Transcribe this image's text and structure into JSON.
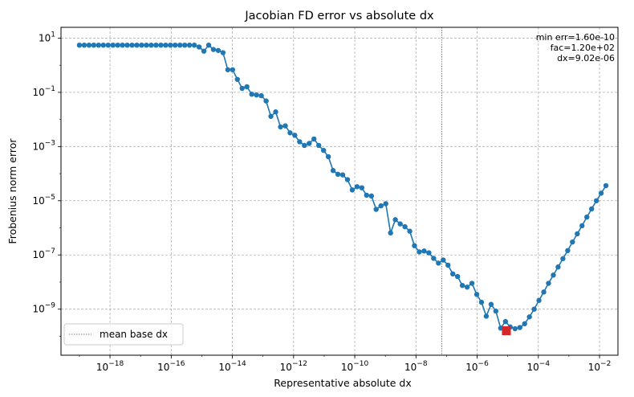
{
  "chart_data": {
    "type": "scatter",
    "title": "Jacobian FD error vs absolute dx",
    "xlabel": "Representative absolute dx",
    "ylabel": "Frobenius norm error",
    "xscale": "log",
    "yscale": "log",
    "xlim": [
      2.5e-20,
      0.04
    ],
    "ylim": [
      2e-11,
      25.0
    ],
    "grid": true,
    "x_ticks": [
      {
        "value": 1e-18,
        "base": "10",
        "exp": "−18"
      },
      {
        "value": 1e-16,
        "base": "10",
        "exp": "−16"
      },
      {
        "value": 1e-14,
        "base": "10",
        "exp": "−14"
      },
      {
        "value": 1e-12,
        "base": "10",
        "exp": "−12"
      },
      {
        "value": 1e-10,
        "base": "10",
        "exp": "−10"
      },
      {
        "value": 1e-08,
        "base": "10",
        "exp": "−8"
      },
      {
        "value": 1e-06,
        "base": "10",
        "exp": "−6"
      },
      {
        "value": 0.0001,
        "base": "10",
        "exp": "−4"
      },
      {
        "value": 0.01,
        "base": "10",
        "exp": "−2"
      }
    ],
    "y_ticks": [
      {
        "value": 10,
        "base": "10",
        "exp": "1"
      },
      {
        "value": 0.1,
        "base": "10",
        "exp": "−1"
      },
      {
        "value": 0.001,
        "base": "10",
        "exp": "−3"
      },
      {
        "value": 1e-05,
        "base": "10",
        "exp": "−5"
      },
      {
        "value": 1e-07,
        "base": "10",
        "exp": "−7"
      },
      {
        "value": 1e-09,
        "base": "10",
        "exp": "−9"
      }
    ],
    "series": [
      {
        "color": "#1f77b4",
        "marker": "circle",
        "points": [
          [
            1e-19,
            5.5
          ],
          [
            1.32e-19,
            5.5
          ],
          [
            1.74e-19,
            5.5
          ],
          [
            2.29e-19,
            5.5
          ],
          [
            3.02e-19,
            5.5
          ],
          [
            3.98e-19,
            5.5
          ],
          [
            5.25e-19,
            5.5
          ],
          [
            6.92e-19,
            5.5
          ],
          [
            9.12e-19,
            5.5
          ],
          [
            1.2e-18,
            5.5
          ],
          [
            1.58e-18,
            5.5
          ],
          [
            2.09e-18,
            5.5
          ],
          [
            2.75e-18,
            5.5
          ],
          [
            3.63e-18,
            5.5
          ],
          [
            4.79e-18,
            5.5
          ],
          [
            6.31e-18,
            5.5
          ],
          [
            8.32e-18,
            5.5
          ],
          [
            1.1e-17,
            5.5
          ],
          [
            1.45e-17,
            5.5
          ],
          [
            1.91e-17,
            5.5
          ],
          [
            2.51e-17,
            5.5
          ],
          [
            3.31e-17,
            5.5
          ],
          [
            4.37e-17,
            5.5
          ],
          [
            5.75e-17,
            5.5
          ],
          [
            7.59e-17,
            5.5
          ],
          [
            1e-16,
            4.7
          ],
          [
            1.32e-16,
            3.3
          ],
          [
            1.74e-16,
            5.5
          ],
          [
            2.29e-16,
            3.8
          ],
          [
            3.02e-16,
            3.5
          ],
          [
            3.98e-16,
            2.9
          ],
          [
            5.25e-16,
            0.68
          ],
          [
            6.92e-16,
            0.68
          ],
          [
            9.12e-16,
            0.3
          ],
          [
            1.2e-15,
            0.14
          ],
          [
            1.58e-15,
            0.16
          ],
          [
            2.09e-15,
            0.085
          ],
          [
            2.75e-15,
            0.08
          ],
          [
            3.63e-15,
            0.075
          ],
          [
            4.79e-15,
            0.048
          ],
          [
            6.31e-15,
            0.013
          ],
          [
            8.32e-15,
            0.019
          ],
          [
            1.1e-14,
            0.0053
          ],
          [
            1.45e-14,
            0.0058
          ],
          [
            1.91e-14,
            0.0032
          ],
          [
            2.51e-14,
            0.0026
          ],
          [
            3.31e-14,
            0.0015
          ],
          [
            4.37e-14,
            0.0011
          ],
          [
            5.75e-14,
            0.0013
          ],
          [
            7.59e-14,
            0.0019
          ],
          [
            1e-13,
            0.0011
          ],
          [
            1.32e-13,
            0.00072
          ],
          [
            1.74e-13,
            0.00042
          ],
          [
            2.29e-13,
            0.00013
          ],
          [
            3.02e-13,
            9.5e-05
          ],
          [
            3.98e-13,
            9e-05
          ],
          [
            5.25e-13,
            6e-05
          ],
          [
            6.92e-13,
            2.5e-05
          ],
          [
            9.12e-13,
            3.3e-05
          ],
          [
            1.2e-12,
            3e-05
          ],
          [
            1.58e-12,
            1.6e-05
          ],
          [
            2.09e-12,
            1.5e-05
          ],
          [
            2.75e-12,
            4.8e-06
          ],
          [
            3.63e-12,
            6.5e-06
          ],
          [
            4.79e-12,
            7.8e-06
          ],
          [
            6.31e-12,
            6.5e-07
          ],
          [
            8.32e-12,
            2e-06
          ],
          [
            1.1e-11,
            1.4e-06
          ],
          [
            1.45e-11,
            1.1e-06
          ],
          [
            1.91e-11,
            7.5e-07
          ],
          [
            2.51e-11,
            2.2e-07
          ],
          [
            3.31e-11,
            1.3e-07
          ],
          [
            4.37e-11,
            1.4e-07
          ],
          [
            5.75e-11,
            1.2e-07
          ],
          [
            7.59e-11,
            7.5e-08
          ],
          [
            1e-10,
            5e-08
          ],
          [
            1.32e-10,
            6.5e-08
          ],
          [
            1.74e-10,
            4.2e-08
          ],
          [
            2.29e-10,
            2e-08
          ],
          [
            3.02e-10,
            1.6e-08
          ],
          [
            3.98e-10,
            7.5e-09
          ],
          [
            5.25e-10,
            6.5e-09
          ],
          [
            6.92e-10,
            9e-09
          ],
          [
            9.12e-10,
            3.5e-09
          ],
          [
            1.2e-09,
            1.8e-09
          ],
          [
            1.58e-09,
            5.5e-10
          ],
          [
            2.09e-09,
            1.5e-09
          ],
          [
            2.75e-09,
            8.5e-10
          ],
          [
            3.63e-09,
            2e-10
          ],
          [
            4.79e-09,
            3.5e-10
          ],
          [
            6.31e-09,
            2.2e-10
          ],
          [
            8.32e-09,
            1.9e-10
          ],
          [
            1.1e-08,
            2.1e-10
          ],
          [
            1.45e-08,
            2.9e-10
          ],
          [
            1.91e-08,
            5.2e-10
          ],
          [
            2.51e-08,
            1e-09
          ],
          [
            3.31e-08,
            2.1e-09
          ],
          [
            4.37e-08,
            4.3e-09
          ],
          [
            5.75e-08,
            9e-09
          ],
          [
            7.59e-08,
            1.8e-08
          ],
          [
            1e-07,
            3.6e-08
          ],
          [
            1.32e-07,
            7.3e-08
          ],
          [
            1.74e-07,
            1.45e-07
          ],
          [
            2.29e-07,
            3e-07
          ],
          [
            3.02e-07,
            6e-07
          ],
          [
            3.98e-07,
            1.2e-06
          ],
          [
            5.25e-07,
            2.5e-06
          ],
          [
            6.92e-07,
            5e-06
          ],
          [
            9.12e-07,
            1e-05
          ],
          [
            1.2e-06,
            1.9e-05
          ],
          [
            1.58e-06,
            3.6e-05
          ]
        ]
      }
    ],
    "x_remap": {
      "from_log": [
        -19,
        -6
      ],
      "to_log": [
        -19,
        -2.05
      ]
    },
    "min_marker": {
      "x": 9.02e-06,
      "y": 1.6e-10,
      "color": "#d62728",
      "marker": "square"
    },
    "mean_base_dx_line": {
      "x": 7e-08,
      "style": "dotted",
      "color": "#808080"
    },
    "annotation": [
      "min err=1.60e-10",
      "fac=1.20e+02",
      "dx=9.02e-06"
    ],
    "legend": {
      "placement": "lower-left",
      "label": "mean base dx"
    }
  }
}
